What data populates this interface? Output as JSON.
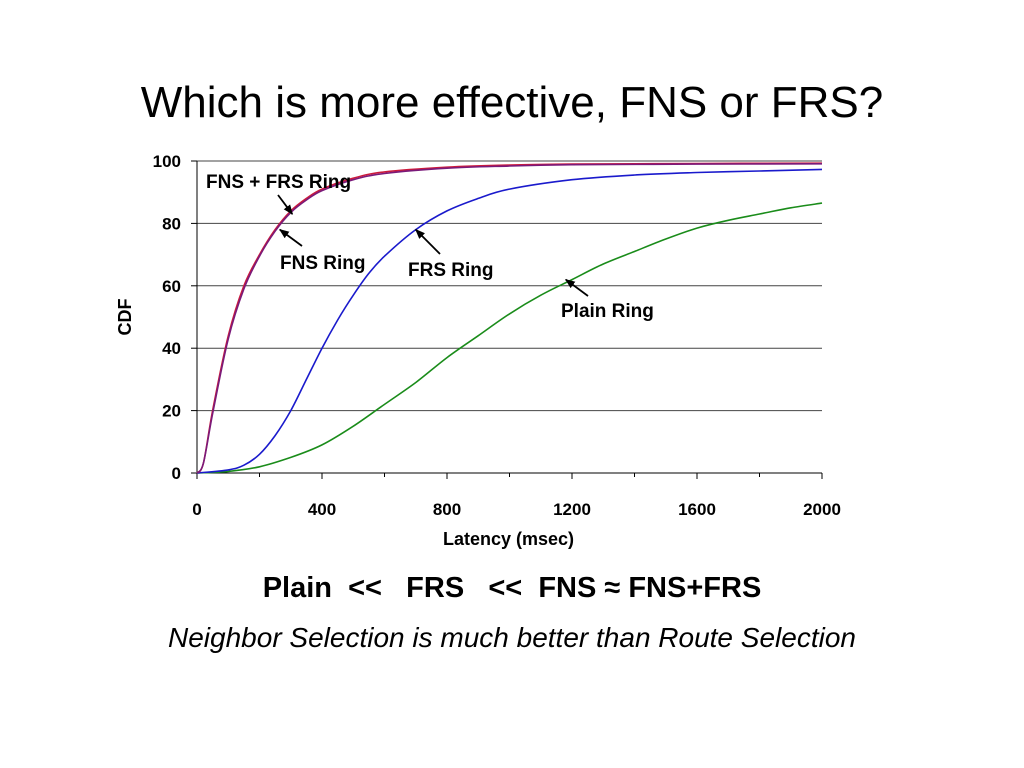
{
  "slide": {
    "title": "Which is more effective, FNS or FRS?",
    "summary": "Plain  <<   FRS   <<  FNS ≈ FNS+FRS",
    "conclusion": "Neighbor Selection is much better than Route Selection"
  },
  "chart_data": {
    "type": "line",
    "title": "",
    "xlabel": "Latency (msec)",
    "ylabel": "CDF",
    "xlim": [
      0,
      2000
    ],
    "ylim": [
      0,
      100
    ],
    "xticks": [
      0,
      400,
      800,
      1200,
      1600,
      2000
    ],
    "yticks": [
      0,
      20,
      40,
      60,
      80,
      100
    ],
    "grid": "horizontal",
    "legend": "none",
    "series": [
      {
        "name": "Plain Ring",
        "color": "#1a8c1a",
        "x": [
          0,
          100,
          200,
          300,
          400,
          500,
          600,
          700,
          800,
          900,
          1000,
          1100,
          1200,
          1300,
          1400,
          1500,
          1600,
          1700,
          1800,
          1900,
          2000
        ],
        "y": [
          0,
          0.5,
          2,
          5,
          9,
          15,
          22,
          29,
          37,
          44,
          51,
          57,
          62,
          67,
          71,
          75,
          78.5,
          81,
          83,
          85,
          86.5
        ]
      },
      {
        "name": "FRS Ring",
        "color": "#1a1acc",
        "x": [
          0,
          100,
          150,
          200,
          250,
          300,
          350,
          400,
          450,
          500,
          550,
          600,
          700,
          800,
          900,
          1000,
          1200,
          1400,
          1600,
          1800,
          2000
        ],
        "y": [
          0,
          1,
          2.5,
          6,
          12,
          20,
          30,
          40,
          49,
          57,
          64,
          69.5,
          78,
          84,
          88,
          91,
          94,
          95.5,
          96.3,
          96.8,
          97.3
        ]
      },
      {
        "name": "FNS Ring",
        "color": "#cc1a3c",
        "x": [
          0,
          20,
          50,
          100,
          150,
          200,
          250,
          300,
          350,
          400,
          500,
          600,
          800,
          1000,
          1200,
          1600,
          2000
        ],
        "y": [
          0,
          3,
          20,
          44,
          60,
          70,
          78,
          84,
          88,
          91,
          94.5,
          96.5,
          98,
          98.7,
          99,
          99.2,
          99.3
        ]
      },
      {
        "name": "FNS + FRS Ring",
        "color": "#7a1a7a",
        "x": [
          0,
          20,
          50,
          100,
          150,
          200,
          250,
          300,
          350,
          400,
          500,
          600,
          800,
          1000,
          1200,
          1600,
          2000
        ],
        "y": [
          0,
          3,
          19,
          43,
          59,
          69.5,
          77.5,
          83.5,
          87.5,
          90.5,
          94,
          96,
          97.7,
          98.4,
          98.8,
          99,
          99.1
        ]
      }
    ],
    "annotations": [
      {
        "text": "FNS + FRS Ring",
        "series": "FNS + FRS Ring",
        "point": [
          305,
          83
        ]
      },
      {
        "text": "FNS Ring",
        "series": "FNS Ring",
        "point": [
          265,
          78
        ]
      },
      {
        "text": "FRS Ring",
        "series": "FRS Ring",
        "point": [
          700,
          78
        ]
      },
      {
        "text": "Plain Ring",
        "series": "Plain Ring",
        "point": [
          1180,
          62
        ]
      }
    ]
  }
}
